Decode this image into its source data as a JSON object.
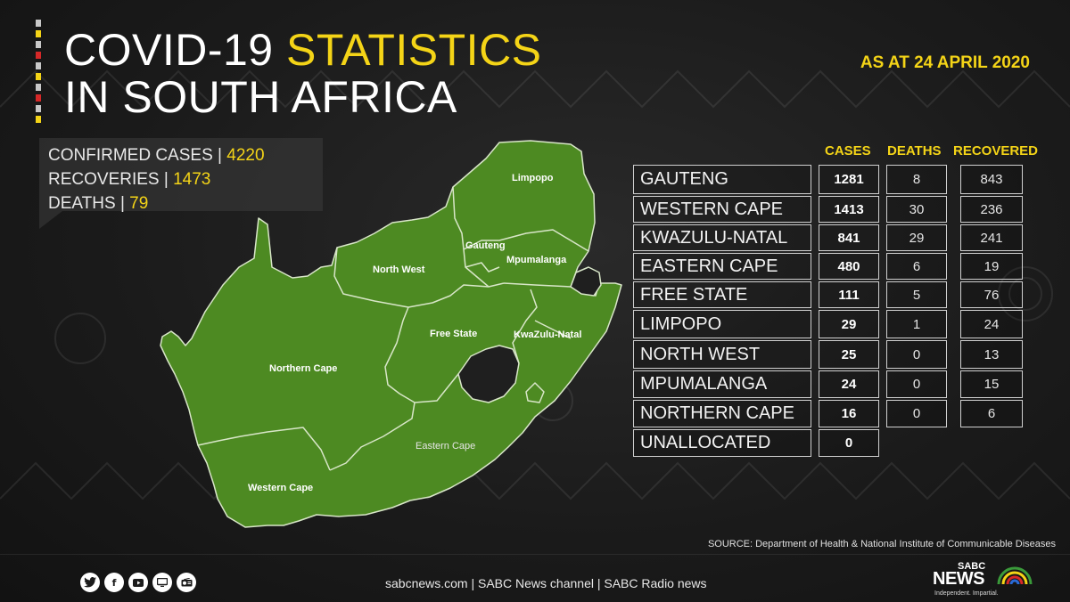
{
  "header": {
    "title_line1_white": "COVID-19",
    "title_line1_yellow": "STATISTICS",
    "title_line2": "IN SOUTH AFRICA",
    "as_at": "AS AT 24 APRIL 2020"
  },
  "summary": {
    "confirmed_label": "CONFIRMED CASES",
    "confirmed_value": "4220",
    "recoveries_label": "RECOVERIES",
    "recoveries_value": "1473",
    "deaths_label": "DEATHS",
    "deaths_value": "79",
    "separator": "|"
  },
  "map": {
    "fill_color": "#4d8a22",
    "border_color": "#d8e6c8",
    "labels": {
      "limpopo": "Limpopo",
      "gauteng": "Gauteng",
      "north_west": "North West",
      "mpumalanga": "Mpumalanga",
      "free_state": "Free State",
      "kwazulu_natal": "KwaZulu-Natal",
      "northern_cape": "Northern Cape",
      "eastern_cape": "Eastern Cape",
      "western_cape": "Western Cape"
    }
  },
  "table": {
    "headers": {
      "cases": "CASES",
      "deaths": "DEATHS",
      "recovered": "RECOVERED"
    },
    "rows": [
      {
        "province": "GAUTENG",
        "cases": "1281",
        "deaths": "8",
        "recovered": "843"
      },
      {
        "province": "WESTERN CAPE",
        "cases": "1413",
        "deaths": "30",
        "recovered": "236"
      },
      {
        "province": "KWAZULU-NATAL",
        "cases": "841",
        "deaths": "29",
        "recovered": "241"
      },
      {
        "province": "EASTERN CAPE",
        "cases": "480",
        "deaths": "6",
        "recovered": "19"
      },
      {
        "province": "FREE STATE",
        "cases": "111",
        "deaths": "5",
        "recovered": "76"
      },
      {
        "province": "LIMPOPO",
        "cases": "29",
        "deaths": "1",
        "recovered": "24"
      },
      {
        "province": "NORTH WEST",
        "cases": "25",
        "deaths": "0",
        "recovered": "13"
      },
      {
        "province": "MPUMALANGA",
        "cases": "24",
        "deaths": "0",
        "recovered": "15"
      },
      {
        "province": "NORTHERN CAPE",
        "cases": "16",
        "deaths": "0",
        "recovered": "6"
      },
      {
        "province": "UNALLOCATED",
        "cases": "0",
        "deaths": "",
        "recovered": ""
      }
    ]
  },
  "source": "SOURCE: Department of Health & National Institute of Communicable Diseases",
  "footer": {
    "links": "sabcnews.com |  SABC News channel | SABC Radio news",
    "socials": [
      "twitter-icon",
      "facebook-icon",
      "youtube-icon",
      "tv-icon",
      "radio-icon"
    ],
    "logo_top": "SABC",
    "logo_main": "NEWS",
    "logo_tagline": "Independent. Impartial."
  },
  "colors": {
    "accent_yellow": "#f4d417",
    "map_green": "#4d8a22",
    "background": "#1b1b1b"
  }
}
